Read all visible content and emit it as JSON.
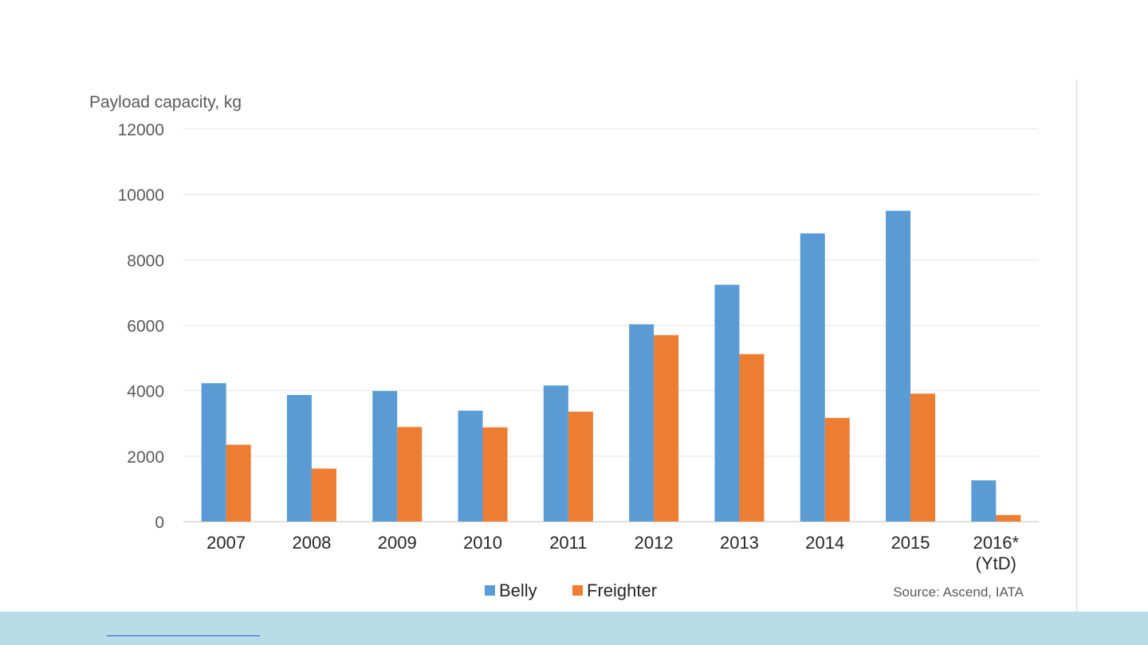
{
  "chart_data": {
    "type": "bar",
    "ylabel": "Payload  capacity,  kg",
    "xlabel": "",
    "ylim": [
      0,
      12000
    ],
    "yticks": [
      0,
      2000,
      4000,
      6000,
      8000,
      10000,
      12000
    ],
    "grid": true,
    "legend_position": "bottom",
    "categories": [
      "2007",
      "2008",
      "2009",
      "2010",
      "2011",
      "2012",
      "2013",
      "2014",
      "2015",
      "2016*\n(YtD)"
    ],
    "series": [
      {
        "name": "Belly",
        "color": "#5b9bd5",
        "values": [
          4230,
          3870,
          3990,
          3390,
          4160,
          6030,
          7240,
          8810,
          9500,
          1260
        ]
      },
      {
        "name": "Freighter",
        "color": "#ed7d31",
        "values": [
          2350,
          1620,
          2890,
          2880,
          3360,
          5700,
          5120,
          3170,
          3910,
          200
        ]
      }
    ],
    "source": "Source: Ascend, IATA"
  },
  "footer": {
    "background": "#b9dde7",
    "link_text": ""
  }
}
